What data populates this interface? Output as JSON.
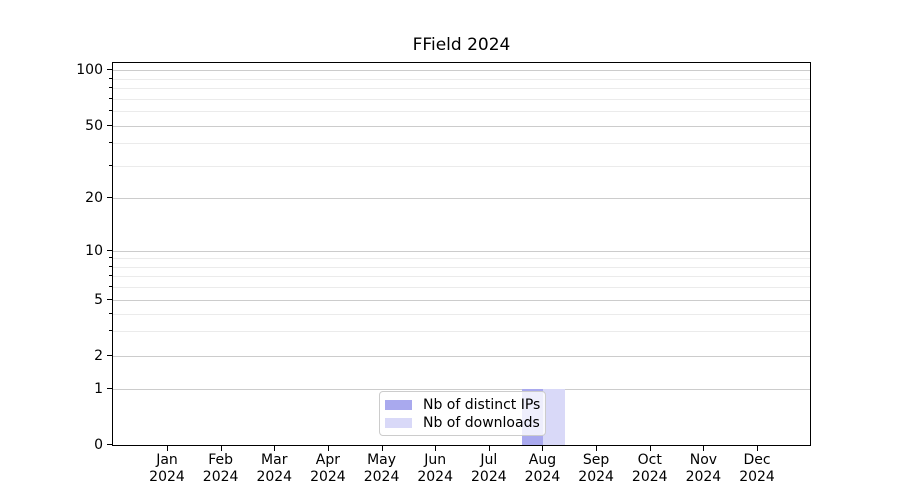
{
  "chart_data": {
    "type": "bar",
    "title": "FField 2024",
    "categories": [
      "Jan 2024",
      "Feb 2024",
      "Mar 2024",
      "Apr 2024",
      "May 2024",
      "Jun 2024",
      "Jul 2024",
      "Aug 2024",
      "Sep 2024",
      "Oct 2024",
      "Nov 2024",
      "Dec 2024"
    ],
    "series": [
      {
        "name": "Nb of distinct IPs",
        "color": "#a9a9ee",
        "values": [
          0,
          0,
          0,
          0,
          0,
          0,
          0,
          1,
          0,
          0,
          0,
          0
        ]
      },
      {
        "name": "Nb of downloads",
        "color": "#d9d9f8",
        "values": [
          0,
          0,
          0,
          0,
          0,
          0,
          0,
          1,
          0,
          0,
          0,
          0
        ]
      }
    ],
    "y_axis": {
      "scale": "symlog",
      "major_ticks": [
        0,
        1,
        2,
        5,
        10,
        20,
        50,
        100
      ],
      "minor_gridlines": [
        3,
        4,
        6,
        7,
        8,
        9,
        30,
        40,
        60,
        70,
        80,
        90
      ],
      "range": [
        0,
        105
      ]
    },
    "legend": {
      "position": "lower center"
    },
    "colors": {
      "major_grid": "#cccccc",
      "minor_grid": "#ebebeb",
      "axis": "#000000"
    }
  }
}
